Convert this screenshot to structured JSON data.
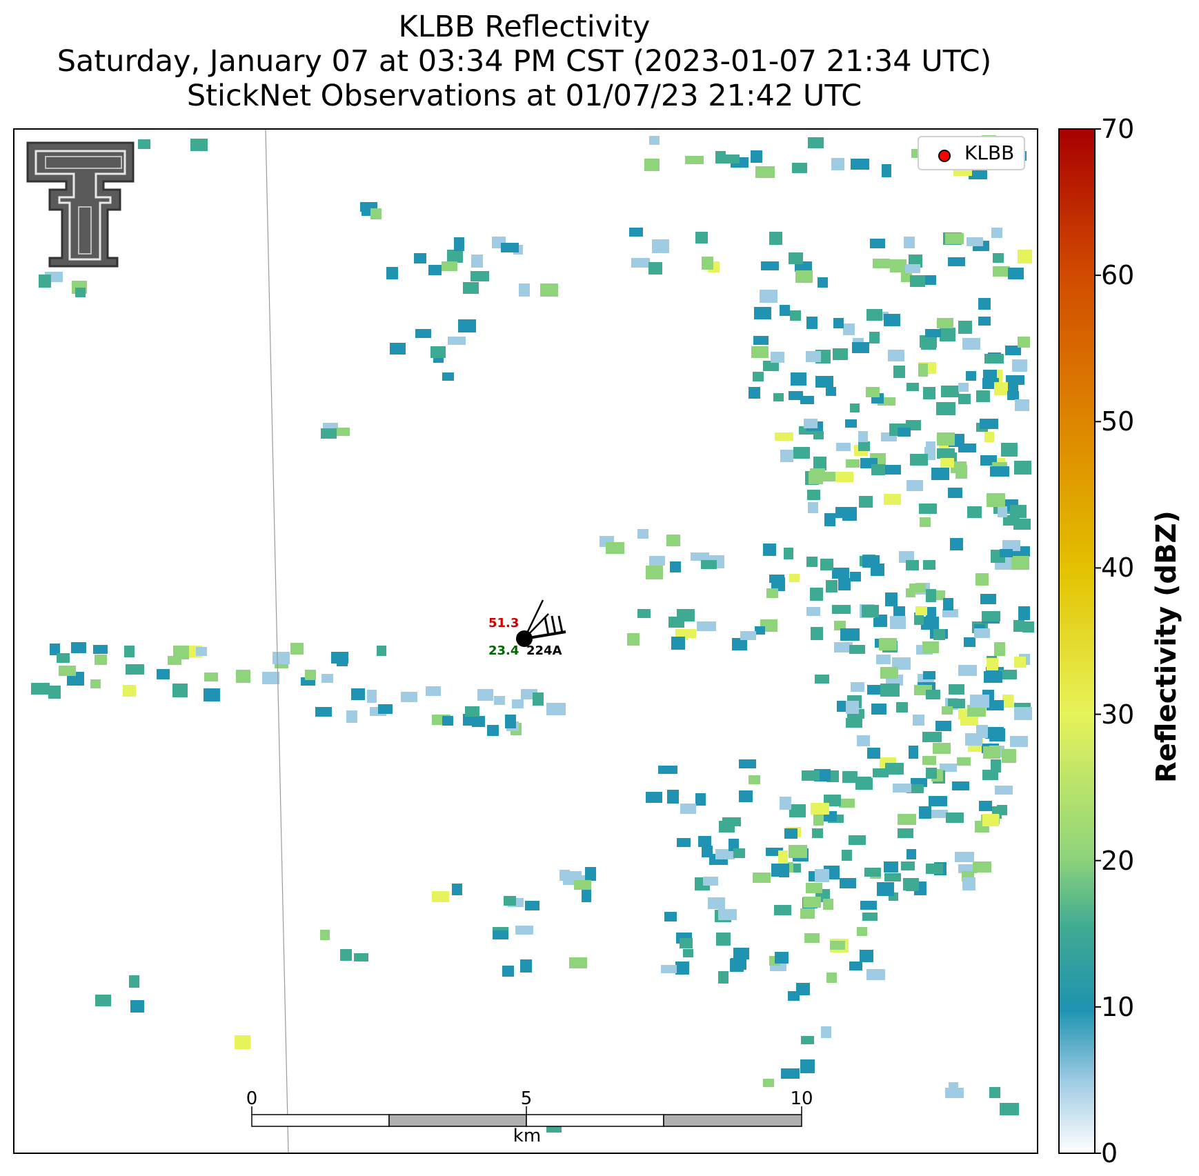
{
  "title": {
    "line1": "KLBB Reflectivity",
    "line2": "Saturday, January 07 at 03:34 PM CST (2023-01-07 21:34 UTC)",
    "line3": "StickNet Observations at 01/07/23 21:42 UTC"
  },
  "colorbar": {
    "label": "Reflectivity (dBZ)",
    "ticks": [
      "0",
      "10",
      "20",
      "30",
      "40",
      "50",
      "60",
      "70"
    ],
    "range": [
      0,
      70
    ],
    "colors": [
      "#ffffff",
      "#9fcbe3",
      "#1f93b1",
      "#3faa92",
      "#8fd47a",
      "#e6f35a",
      "#e3c200",
      "#de8700",
      "#d04a00",
      "#a80000"
    ]
  },
  "legend": {
    "label": "KLBB",
    "marker_color": "#ff0000"
  },
  "scalebar": {
    "labels": [
      "0",
      "5",
      "10"
    ],
    "unit": "km"
  },
  "station": {
    "temperature": "51.3",
    "dewpoint": "23.4",
    "id": "224A"
  },
  "logo": {
    "name": "texas-tech-double-t-logo"
  }
}
